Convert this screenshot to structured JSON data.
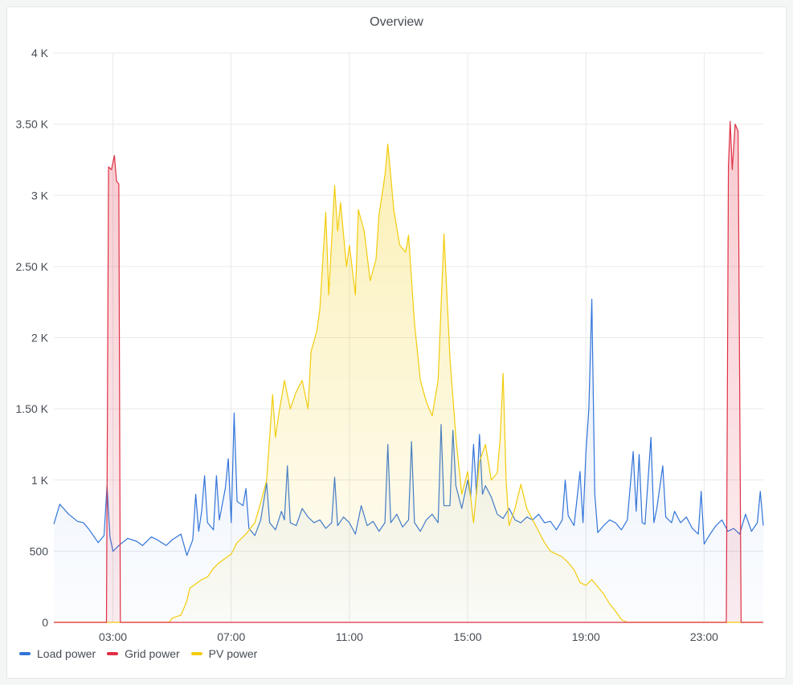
{
  "panel": {
    "title": "Overview"
  },
  "chart_data": {
    "type": "area",
    "title": "Overview",
    "xlabel": "",
    "ylabel": "",
    "x_unit": "hours",
    "x_range": [
      1.0,
      25.0
    ],
    "ylim": [
      0,
      4000
    ],
    "y_ticks": [
      0,
      500,
      1000,
      1500,
      2000,
      2500,
      3000,
      3500,
      4000
    ],
    "y_tick_labels": [
      "0",
      "500",
      "1 K",
      "1.50 K",
      "2 K",
      "2.50 K",
      "3 K",
      "3.50 K",
      "4 K"
    ],
    "x_ticks": [
      3,
      7,
      11,
      15,
      19,
      23
    ],
    "x_tick_labels": [
      "03:00",
      "07:00",
      "11:00",
      "15:00",
      "19:00",
      "23:00"
    ],
    "grid": true,
    "legend_position": "bottom-left",
    "series": [
      {
        "name": "Load power",
        "color": "#3274d9",
        "points": [
          [
            1.0,
            690
          ],
          [
            1.2,
            830
          ],
          [
            1.5,
            760
          ],
          [
            1.8,
            710
          ],
          [
            2.0,
            700
          ],
          [
            2.2,
            650
          ],
          [
            2.5,
            560
          ],
          [
            2.7,
            610
          ],
          [
            2.8,
            960
          ],
          [
            2.9,
            600
          ],
          [
            3.0,
            500
          ],
          [
            3.2,
            540
          ],
          [
            3.5,
            590
          ],
          [
            3.8,
            570
          ],
          [
            4.0,
            540
          ],
          [
            4.3,
            600
          ],
          [
            4.5,
            580
          ],
          [
            4.8,
            540
          ],
          [
            5.0,
            580
          ],
          [
            5.3,
            620
          ],
          [
            5.5,
            470
          ],
          [
            5.7,
            580
          ],
          [
            5.8,
            900
          ],
          [
            5.9,
            640
          ],
          [
            6.0,
            780
          ],
          [
            6.1,
            1030
          ],
          [
            6.2,
            700
          ],
          [
            6.4,
            650
          ],
          [
            6.5,
            1030
          ],
          [
            6.6,
            720
          ],
          [
            6.8,
            940
          ],
          [
            6.9,
            1150
          ],
          [
            7.0,
            700
          ],
          [
            7.1,
            1470
          ],
          [
            7.2,
            850
          ],
          [
            7.4,
            820
          ],
          [
            7.5,
            940
          ],
          [
            7.6,
            660
          ],
          [
            7.8,
            610
          ],
          [
            8.0,
            720
          ],
          [
            8.2,
            980
          ],
          [
            8.3,
            700
          ],
          [
            8.5,
            650
          ],
          [
            8.7,
            780
          ],
          [
            8.8,
            720
          ],
          [
            8.9,
            1100
          ],
          [
            9.0,
            700
          ],
          [
            9.2,
            680
          ],
          [
            9.4,
            800
          ],
          [
            9.6,
            740
          ],
          [
            9.8,
            700
          ],
          [
            10.0,
            720
          ],
          [
            10.2,
            660
          ],
          [
            10.4,
            700
          ],
          [
            10.5,
            1020
          ],
          [
            10.6,
            680
          ],
          [
            10.8,
            740
          ],
          [
            11.0,
            700
          ],
          [
            11.2,
            620
          ],
          [
            11.4,
            820
          ],
          [
            11.6,
            680
          ],
          [
            11.8,
            710
          ],
          [
            12.0,
            640
          ],
          [
            12.2,
            700
          ],
          [
            12.3,
            1250
          ],
          [
            12.4,
            700
          ],
          [
            12.6,
            760
          ],
          [
            12.8,
            670
          ],
          [
            13.0,
            720
          ],
          [
            13.1,
            1270
          ],
          [
            13.2,
            700
          ],
          [
            13.4,
            640
          ],
          [
            13.6,
            720
          ],
          [
            13.8,
            760
          ],
          [
            14.0,
            700
          ],
          [
            14.1,
            1390
          ],
          [
            14.2,
            820
          ],
          [
            14.4,
            820
          ],
          [
            14.5,
            1350
          ],
          [
            14.6,
            960
          ],
          [
            14.8,
            800
          ],
          [
            15.0,
            1000
          ],
          [
            15.1,
            880
          ],
          [
            15.2,
            1250
          ],
          [
            15.3,
            900
          ],
          [
            15.4,
            1320
          ],
          [
            15.5,
            900
          ],
          [
            15.6,
            960
          ],
          [
            15.8,
            880
          ],
          [
            16.0,
            760
          ],
          [
            16.2,
            730
          ],
          [
            16.4,
            800
          ],
          [
            16.6,
            720
          ],
          [
            16.8,
            700
          ],
          [
            17.0,
            740
          ],
          [
            17.2,
            720
          ],
          [
            17.4,
            760
          ],
          [
            17.6,
            700
          ],
          [
            17.8,
            710
          ],
          [
            18.0,
            650
          ],
          [
            18.2,
            720
          ],
          [
            18.3,
            1000
          ],
          [
            18.4,
            750
          ],
          [
            18.6,
            680
          ],
          [
            18.8,
            1060
          ],
          [
            18.9,
            700
          ],
          [
            19.0,
            1200
          ],
          [
            19.1,
            1500
          ],
          [
            19.2,
            2270
          ],
          [
            19.3,
            900
          ],
          [
            19.4,
            630
          ],
          [
            19.6,
            680
          ],
          [
            19.8,
            720
          ],
          [
            20.0,
            700
          ],
          [
            20.2,
            650
          ],
          [
            20.4,
            720
          ],
          [
            20.6,
            1200
          ],
          [
            20.7,
            780
          ],
          [
            20.8,
            1180
          ],
          [
            20.9,
            700
          ],
          [
            21.0,
            690
          ],
          [
            21.2,
            1300
          ],
          [
            21.3,
            700
          ],
          [
            21.4,
            800
          ],
          [
            21.6,
            1100
          ],
          [
            21.7,
            740
          ],
          [
            21.9,
            700
          ],
          [
            22.0,
            780
          ],
          [
            22.2,
            700
          ],
          [
            22.4,
            740
          ],
          [
            22.6,
            660
          ],
          [
            22.8,
            620
          ],
          [
            22.9,
            920
          ],
          [
            23.0,
            550
          ],
          [
            23.2,
            620
          ],
          [
            23.4,
            680
          ],
          [
            23.6,
            720
          ],
          [
            23.8,
            640
          ],
          [
            24.0,
            660
          ],
          [
            24.2,
            620
          ],
          [
            24.4,
            760
          ],
          [
            24.6,
            640
          ],
          [
            24.8,
            700
          ],
          [
            24.9,
            920
          ],
          [
            25.0,
            680
          ]
        ]
      },
      {
        "name": "Grid power",
        "color": "#e02f44",
        "points": [
          [
            1.0,
            0
          ],
          [
            2.78,
            0
          ],
          [
            2.85,
            3200
          ],
          [
            2.95,
            3180
          ],
          [
            3.05,
            3280
          ],
          [
            3.12,
            3100
          ],
          [
            3.2,
            3080
          ],
          [
            3.25,
            0
          ],
          [
            23.75,
            0
          ],
          [
            23.82,
            3200
          ],
          [
            23.88,
            3520
          ],
          [
            23.95,
            3180
          ],
          [
            24.05,
            3500
          ],
          [
            24.15,
            3450
          ],
          [
            24.25,
            0
          ],
          [
            25.0,
            0
          ]
        ]
      },
      {
        "name": "PV power",
        "color": "#f2cc0c",
        "points": [
          [
            1.0,
            0
          ],
          [
            4.9,
            0
          ],
          [
            5.0,
            30
          ],
          [
            5.3,
            50
          ],
          [
            5.5,
            150
          ],
          [
            5.6,
            240
          ],
          [
            5.8,
            270
          ],
          [
            6.0,
            300
          ],
          [
            6.2,
            320
          ],
          [
            6.4,
            380
          ],
          [
            6.6,
            420
          ],
          [
            7.0,
            480
          ],
          [
            7.2,
            560
          ],
          [
            7.5,
            620
          ],
          [
            7.8,
            700
          ],
          [
            8.0,
            840
          ],
          [
            8.2,
            1000
          ],
          [
            8.4,
            1600
          ],
          [
            8.5,
            1300
          ],
          [
            8.6,
            1450
          ],
          [
            8.8,
            1700
          ],
          [
            9.0,
            1500
          ],
          [
            9.2,
            1620
          ],
          [
            9.4,
            1700
          ],
          [
            9.6,
            1500
          ],
          [
            9.7,
            1900
          ],
          [
            9.9,
            2050
          ],
          [
            10.0,
            2200
          ],
          [
            10.1,
            2550
          ],
          [
            10.2,
            2880
          ],
          [
            10.3,
            2300
          ],
          [
            10.5,
            3070
          ],
          [
            10.6,
            2750
          ],
          [
            10.7,
            2950
          ],
          [
            10.9,
            2500
          ],
          [
            11.0,
            2650
          ],
          [
            11.2,
            2300
          ],
          [
            11.3,
            2900
          ],
          [
            11.5,
            2750
          ],
          [
            11.7,
            2400
          ],
          [
            11.9,
            2550
          ],
          [
            12.0,
            2860
          ],
          [
            12.2,
            3140
          ],
          [
            12.3,
            3360
          ],
          [
            12.5,
            2900
          ],
          [
            12.7,
            2650
          ],
          [
            12.9,
            2600
          ],
          [
            13.0,
            2720
          ],
          [
            13.2,
            2100
          ],
          [
            13.4,
            1700
          ],
          [
            13.6,
            1550
          ],
          [
            13.8,
            1450
          ],
          [
            14.0,
            1700
          ],
          [
            14.2,
            2730
          ],
          [
            14.4,
            1860
          ],
          [
            14.6,
            1300
          ],
          [
            14.8,
            900
          ],
          [
            15.0,
            1060
          ],
          [
            15.2,
            700
          ],
          [
            15.4,
            1130
          ],
          [
            15.6,
            1250
          ],
          [
            15.8,
            1000
          ],
          [
            16.0,
            1050
          ],
          [
            16.1,
            1300
          ],
          [
            16.2,
            1750
          ],
          [
            16.3,
            1000
          ],
          [
            16.4,
            680
          ],
          [
            16.6,
            800
          ],
          [
            16.8,
            970
          ],
          [
            17.0,
            800
          ],
          [
            17.2,
            720
          ],
          [
            17.4,
            640
          ],
          [
            17.6,
            560
          ],
          [
            17.8,
            500
          ],
          [
            18.0,
            480
          ],
          [
            18.2,
            460
          ],
          [
            18.4,
            420
          ],
          [
            18.6,
            370
          ],
          [
            18.8,
            280
          ],
          [
            19.0,
            260
          ],
          [
            19.2,
            300
          ],
          [
            19.4,
            250
          ],
          [
            19.6,
            200
          ],
          [
            19.8,
            130
          ],
          [
            20.0,
            80
          ],
          [
            20.2,
            20
          ],
          [
            20.4,
            0
          ],
          [
            25.0,
            0
          ]
        ]
      }
    ]
  }
}
